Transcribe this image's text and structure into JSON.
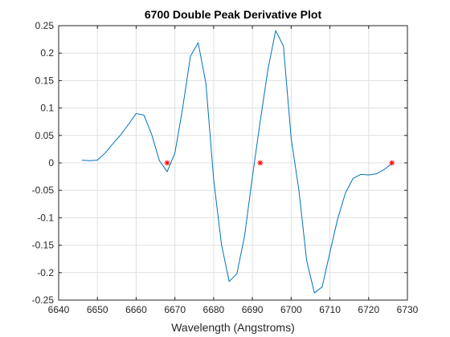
{
  "chart_data": {
    "type": "line",
    "title": "6700 Double Peak Derivative Plot",
    "xlabel": "Wavelength (Angstroms)",
    "ylabel": "",
    "xlim": [
      6640,
      6730
    ],
    "ylim": [
      -0.25,
      0.25
    ],
    "xticks": [
      6640,
      6650,
      6660,
      6670,
      6680,
      6690,
      6700,
      6710,
      6720,
      6730
    ],
    "xtick_labels": [
      "6640",
      "6650",
      "6660",
      "6670",
      "6680",
      "6690",
      "6700",
      "6710",
      "6720",
      "6730"
    ],
    "yticks": [
      0.25,
      0.2,
      0.15,
      0.1,
      0.05,
      0,
      -0.05,
      -0.1,
      -0.15,
      -0.2,
      -0.25
    ],
    "ytick_labels": [
      "0.25",
      "0.2",
      "0.15",
      "0.1",
      "0.05",
      "0",
      "-0.05",
      "-0.1",
      "-0.15",
      "-0.2",
      "-0.25"
    ],
    "grid": true,
    "series": [
      {
        "style": "line",
        "color": "#0072BD",
        "x": [
          6646,
          6648,
          6650,
          6652,
          6654,
          6656,
          6658,
          6660,
          6662,
          6664,
          6666,
          6668,
          6670,
          6672,
          6674,
          6676,
          6678,
          6680,
          6682,
          6684,
          6686,
          6688,
          6690,
          6692,
          6694,
          6696,
          6698,
          6700,
          6702,
          6704,
          6706,
          6708,
          6710,
          6712,
          6714,
          6716,
          6718,
          6720,
          6722,
          6724,
          6726
        ],
        "y": [
          0.005,
          0.004,
          0.005,
          0.018,
          0.035,
          0.051,
          0.07,
          0.09,
          0.087,
          0.052,
          0.004,
          -0.016,
          0.018,
          0.1,
          0.194,
          0.219,
          0.145,
          -0.03,
          -0.148,
          -0.216,
          -0.202,
          -0.132,
          -0.025,
          0.075,
          0.17,
          0.241,
          0.213,
          0.045,
          -0.05,
          -0.178,
          -0.237,
          -0.226,
          -0.163,
          -0.102,
          -0.055,
          -0.028,
          -0.021,
          -0.022,
          -0.02,
          -0.012,
          -0.001
        ]
      },
      {
        "style": "marker",
        "marker": "asterisk",
        "color": "#FF0000",
        "x": [
          6668,
          6692,
          6726
        ],
        "y": [
          0,
          0,
          0
        ]
      }
    ]
  }
}
